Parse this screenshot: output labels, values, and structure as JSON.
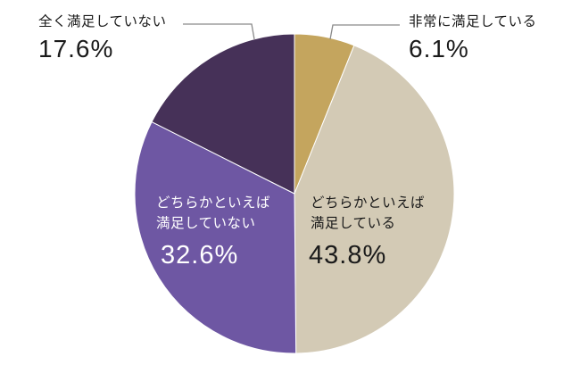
{
  "chart_data": {
    "type": "pie",
    "title": "",
    "start_angle": "12 o'clock",
    "direction": "clockwise",
    "categories": [
      "非常に満足している",
      "どちらかといえば満足している",
      "どちらかといえば満足していない",
      "全く満足していない"
    ],
    "values": [
      6.1,
      43.8,
      32.6,
      17.6
    ],
    "unit": "%",
    "colors": [
      "#c4a55e",
      "#d3cab5",
      "#6e57a3",
      "#463158"
    ],
    "labels_display": [
      {
        "line1": "非常に満足している",
        "line2": "",
        "pct": "6.1%",
        "position": "outside-top-right",
        "leader_line": true
      },
      {
        "line1": "どちらかといえば",
        "line2": "満足している",
        "pct": "43.8%",
        "position": "inside"
      },
      {
        "line1": "どちらかといえば",
        "line2": "満足していない",
        "pct": "32.6%",
        "position": "inside"
      },
      {
        "line1": "全く満足していない",
        "line2": "",
        "pct": "17.6%",
        "position": "outside-top-left",
        "leader_line": true
      }
    ]
  },
  "labels": {
    "very_satisfied": {
      "text": "非常に満足している",
      "pct": "6.1%"
    },
    "somewhat_satisfied": {
      "line1": "どちらかといえば",
      "line2": "満足している",
      "pct": "43.8%"
    },
    "somewhat_unsatisfied": {
      "line1": "どちらかといえば",
      "line2": "満足していない",
      "pct": "32.6%"
    },
    "not_satisfied": {
      "text": "全く満足していない",
      "pct": "17.6%"
    }
  }
}
